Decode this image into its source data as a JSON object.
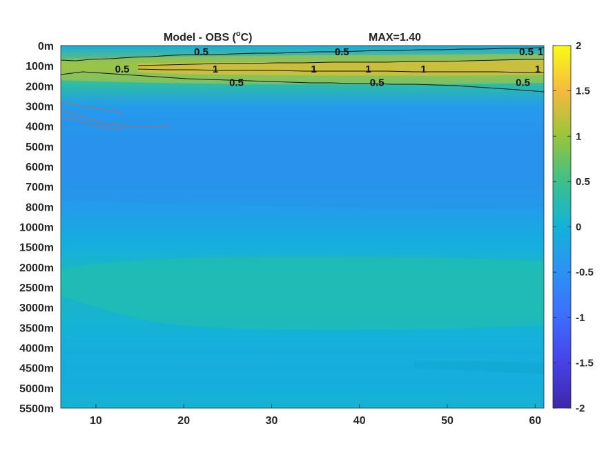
{
  "chart_data": {
    "type": "heatmap",
    "title": "Model - OBS (°C)",
    "title_prefix": "Model - OBS (",
    "title_sup": "o",
    "title_suffix": "C)",
    "max_label": "MAX=1.40",
    "x": {
      "range": [
        6,
        61
      ],
      "ticks": [
        10,
        20,
        30,
        40,
        50,
        60
      ],
      "tick_labels": [
        "10",
        "20",
        "30",
        "40",
        "50",
        "60"
      ]
    },
    "y": {
      "levels": [
        "0m",
        "100m",
        "200m",
        "300m",
        "400m",
        "500m",
        "600m",
        "700m",
        "800m",
        "1000m",
        "1500m",
        "2000m",
        "2500m",
        "3000m",
        "3500m",
        "4000m",
        "4500m",
        "5000m",
        "5500m"
      ]
    },
    "colorbar": {
      "range": [
        -2,
        2
      ],
      "ticks": [
        2,
        1.5,
        1,
        0.5,
        0,
        -0.5,
        -1,
        -1.5,
        -2
      ],
      "tick_labels": [
        "2",
        "1.5",
        "1",
        "0.5",
        "0",
        "-0.5",
        "-1",
        "-1.5",
        "-2"
      ],
      "colormap": "parula"
    },
    "profile": [
      {
        "level": "0m",
        "value": -0.1
      },
      {
        "level": "100m",
        "value": 0.85
      },
      {
        "level": "200m",
        "value": 0.3
      },
      {
        "level": "300m",
        "value": -0.35
      },
      {
        "level": "400m",
        "value": -0.45
      },
      {
        "level": "500m",
        "value": -0.55
      },
      {
        "level": "600m",
        "value": -0.55
      },
      {
        "level": "700m",
        "value": -0.5
      },
      {
        "level": "800m",
        "value": -0.35
      },
      {
        "level": "1000m",
        "value": -0.2
      },
      {
        "level": "1500m",
        "value": -0.05
      },
      {
        "level": "2000m",
        "value": 0.1
      },
      {
        "level": "2500m",
        "value": 0.12
      },
      {
        "level": "3000m",
        "value": 0.08
      },
      {
        "level": "3500m",
        "value": 0.02
      },
      {
        "level": "4000m",
        "value": -0.05
      },
      {
        "level": "4500m",
        "value": -0.08
      },
      {
        "level": "5000m",
        "value": -0.05
      },
      {
        "level": "5500m",
        "value": 0.05
      }
    ],
    "contour_labels": [
      {
        "text": "0.5",
        "x": 13.0,
        "level": "100m"
      },
      {
        "text": "0.5",
        "x": 22.0,
        "level": "0m"
      },
      {
        "text": "0.5",
        "x": 38.0,
        "level": "0m"
      },
      {
        "text": "0.5",
        "x": 59.0,
        "level": "0m"
      },
      {
        "text": "0.5",
        "x": 26.0,
        "level": "200m"
      },
      {
        "text": "0.5",
        "x": 42.0,
        "level": "200m"
      },
      {
        "text": "0.5",
        "x": 58.6,
        "level": "200m"
      },
      {
        "text": "1",
        "x": 23.6,
        "level": "100m"
      },
      {
        "text": "1",
        "x": 34.8,
        "level": "100m"
      },
      {
        "text": "1",
        "x": 41.0,
        "level": "100m"
      },
      {
        "text": "1",
        "x": 47.3,
        "level": "100m"
      },
      {
        "text": "1",
        "x": 60.6,
        "level": "0m"
      },
      {
        "text": "1",
        "x": 60.3,
        "level": "100m"
      }
    ]
  }
}
